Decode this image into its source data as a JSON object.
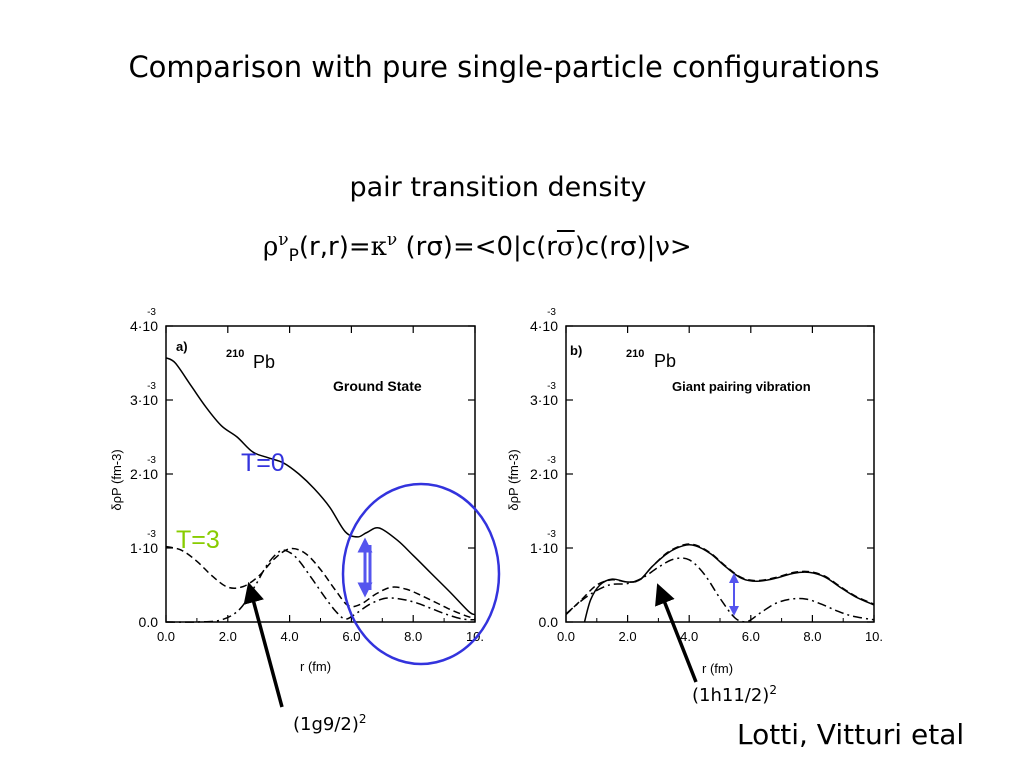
{
  "slide": {
    "title": "Comparison with pure single-particle configurations",
    "subtitle": "pair transition density",
    "formula": {
      "rho": "ρ",
      "nu": "ν",
      "P": "P",
      "args": "(r,r)=",
      "kappa": "κ",
      "nu2": "ν",
      "part1": " (rσ)=<0|c(r",
      "sigma_bar": "σ",
      "part2": ")c(rσ)|ν>"
    },
    "citation": "Lotti, Vitturi etal",
    "annotations": {
      "left_config": "(1g9/2)",
      "left_config_sup": "2",
      "right_config": "(1h11/2)",
      "right_config_sup": "2"
    },
    "colors": {
      "blue": "#3333dd",
      "green": "#88cc00",
      "black": "#000000"
    }
  },
  "chart_data": [
    {
      "type": "line",
      "panel_label": "a)",
      "nucleus_mass": "210",
      "nucleus": "Pb",
      "title": "Ground State",
      "xlabel": "r (fm)",
      "ylabel": "δρP (fm-3)",
      "xlim": [
        0,
        10
      ],
      "ylim": [
        0,
        0.004
      ],
      "x_ticks": [
        "0.0",
        "2.0",
        "4.0",
        "6.0",
        "8.0",
        "10."
      ],
      "y_ticks": [
        {
          "value": 0,
          "mantissa": "0.0",
          "exp": ""
        },
        {
          "value": 0.001,
          "mantissa": "1·10",
          "exp": "-3"
        },
        {
          "value": 0.002,
          "mantissa": "2·10",
          "exp": "-3"
        },
        {
          "value": 0.003,
          "mantissa": "3·10",
          "exp": "-3"
        },
        {
          "value": 0.004,
          "mantissa": "4·10",
          "exp": "-3"
        }
      ],
      "labels": [
        {
          "text": "T=0",
          "color": "#3333dd"
        },
        {
          "text": "T=3",
          "color": "#88cc00"
        }
      ],
      "series": [
        {
          "style": "solid",
          "x": [
            0,
            0.3,
            0.8,
            1.3,
            1.8,
            2.3,
            2.8,
            3.3,
            3.8,
            4.3,
            4.8,
            5.3,
            5.8,
            6.2,
            6.5,
            6.9,
            7.5,
            8.0,
            8.6,
            9.2,
            9.8,
            10
          ],
          "y": [
            0.00357,
            0.0035,
            0.0032,
            0.0029,
            0.00265,
            0.0025,
            0.0023,
            0.00222,
            0.00215,
            0.002,
            0.0018,
            0.00155,
            0.00122,
            0.00115,
            0.00121,
            0.00127,
            0.0011,
            0.0009,
            0.00065,
            0.0004,
            0.00014,
            0.0001
          ]
        },
        {
          "style": "dash",
          "x": [
            0,
            0.5,
            1.0,
            1.5,
            2.0,
            2.5,
            3.0,
            3.5,
            4.0,
            4.5,
            5.0,
            5.5,
            5.9,
            6.3,
            6.8,
            7.3,
            7.8,
            8.3,
            8.8,
            9.3,
            9.8,
            10
          ],
          "y": [
            0.00102,
            0.00097,
            0.00082,
            0.00062,
            0.00047,
            0.00048,
            0.00062,
            0.00085,
            0.00099,
            0.00093,
            0.00071,
            0.00042,
            0.00022,
            0.00024,
            0.00038,
            0.00047,
            0.00044,
            0.00035,
            0.00025,
            0.00015,
            7e-05,
            5e-05
          ]
        },
        {
          "style": "dashdot",
          "x": [
            0,
            1.0,
            1.8,
            2.4,
            2.9,
            3.3,
            3.7,
            4.0,
            4.3,
            4.7,
            5.1,
            5.5,
            5.8,
            6.1,
            6.6,
            7.1,
            7.6,
            8.1,
            8.6,
            9.1,
            9.6,
            10
          ],
          "y": [
            0,
            0,
            3e-05,
            0.00018,
            0.0005,
            0.00079,
            0.00096,
            0.00094,
            0.00083,
            0.0006,
            0.00036,
            0.00014,
            4e-05,
            0.0001,
            0.00024,
            0.00032,
            0.00031,
            0.00026,
            0.00018,
            0.0001,
            4e-05,
            3e-05
          ]
        }
      ]
    },
    {
      "type": "line",
      "panel_label": "b)",
      "nucleus_mass": "210",
      "nucleus": "Pb",
      "title": "Giant pairing vibration",
      "xlabel": "r (fm)",
      "ylabel": "δρP (fm-3)",
      "xlim": [
        0,
        10
      ],
      "ylim": [
        0,
        0.004
      ],
      "x_ticks": [
        "0.0",
        "2.0",
        "4.0",
        "6.0",
        "8.0",
        "10."
      ],
      "y_ticks": [
        {
          "value": 0,
          "mantissa": "0.0",
          "exp": ""
        },
        {
          "value": 0.001,
          "mantissa": "1·10",
          "exp": "-3"
        },
        {
          "value": 0.002,
          "mantissa": "2·10",
          "exp": "-3"
        },
        {
          "value": 0.003,
          "mantissa": "3·10",
          "exp": "-3"
        },
        {
          "value": 0.004,
          "mantissa": "4·10",
          "exp": "-3"
        }
      ],
      "series": [
        {
          "style": "solid",
          "x": [
            0.6,
            0.8,
            1.1,
            1.5,
            2.0,
            2.4,
            2.8,
            3.3,
            3.8,
            4.2,
            4.7,
            5.2,
            5.7,
            6.2,
            6.8,
            7.4,
            7.9,
            8.4,
            8.9,
            9.4,
            10
          ],
          "y": [
            0,
            0.0003,
            0.0005,
            0.00058,
            0.00054,
            0.00057,
            0.00075,
            0.00093,
            0.00103,
            0.00103,
            0.00092,
            0.00074,
            0.00059,
            0.00055,
            0.00059,
            0.00066,
            0.00067,
            0.00061,
            0.00047,
            0.00034,
            0.00023
          ]
        },
        {
          "style": "dash",
          "x": [
            0,
            0.5,
            1.0,
            1.5,
            2.0,
            2.4,
            2.8,
            3.3,
            3.8,
            4.2,
            4.7,
            5.2,
            5.7,
            6.2,
            6.8,
            7.4,
            7.9,
            8.4,
            8.9,
            9.4,
            10
          ],
          "y": [
            0.0001,
            0.0003,
            0.0005,
            0.00057,
            0.00054,
            0.00057,
            0.00075,
            0.00094,
            0.00104,
            0.00104,
            0.00093,
            0.00075,
            0.0006,
            0.00056,
            0.0006,
            0.00067,
            0.00068,
            0.00062,
            0.00048,
            0.00035,
            0.00024
          ]
        },
        {
          "style": "dashdot",
          "x": [
            0,
            0.7,
            1.4,
            2.0,
            2.5,
            3.0,
            3.5,
            4.0,
            4.5,
            5.0,
            5.5,
            5.9,
            6.3,
            6.8,
            7.3,
            7.8,
            8.3,
            8.8,
            9.3,
            10
          ],
          "y": [
            0.00011,
            0.00035,
            0.0005,
            0.00052,
            0.0006,
            0.00074,
            0.00085,
            0.00084,
            0.00064,
            0.00032,
            5e-05,
            1e-05,
            0.00012,
            0.00025,
            0.00031,
            0.00031,
            0.00024,
            0.00015,
            8e-05,
            3e-05
          ]
        }
      ]
    }
  ]
}
